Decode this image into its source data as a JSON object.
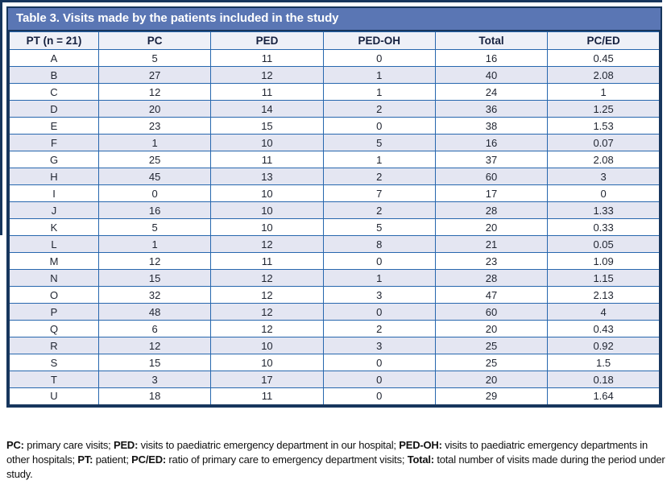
{
  "table": {
    "title": "Table 3. Visits made by the patients included in the study",
    "columns": [
      "PT (n = 21)",
      "PC",
      "PED",
      "PED-OH",
      "Total",
      "PC/ED"
    ],
    "rows": [
      [
        "A",
        "5",
        "11",
        "0",
        "16",
        "0.45"
      ],
      [
        "B",
        "27",
        "12",
        "1",
        "40",
        "2.08"
      ],
      [
        "C",
        "12",
        "11",
        "1",
        "24",
        "1"
      ],
      [
        "D",
        "20",
        "14",
        "2",
        "36",
        "1.25"
      ],
      [
        "E",
        "23",
        "15",
        "0",
        "38",
        "1.53"
      ],
      [
        "F",
        "1",
        "10",
        "5",
        "16",
        "0.07"
      ],
      [
        "G",
        "25",
        "11",
        "1",
        "37",
        "2.08"
      ],
      [
        "H",
        "45",
        "13",
        "2",
        "60",
        "3"
      ],
      [
        "I",
        "0",
        "10",
        "7",
        "17",
        "0"
      ],
      [
        "J",
        "16",
        "10",
        "2",
        "28",
        "1.33"
      ],
      [
        "K",
        "5",
        "10",
        "5",
        "20",
        "0.33"
      ],
      [
        "L",
        "1",
        "12",
        "8",
        "21",
        "0.05"
      ],
      [
        "M",
        "12",
        "11",
        "0",
        "23",
        "1.09"
      ],
      [
        "N",
        "15",
        "12",
        "1",
        "28",
        "1.15"
      ],
      [
        "O",
        "32",
        "12",
        "3",
        "47",
        "2.13"
      ],
      [
        "P",
        "48",
        "12",
        "0",
        "60",
        "4"
      ],
      [
        "Q",
        "6",
        "12",
        "2",
        "20",
        "0.43"
      ],
      [
        "R",
        "12",
        "10",
        "3",
        "25",
        "0.92"
      ],
      [
        "S",
        "15",
        "10",
        "0",
        "25",
        "1.5"
      ],
      [
        "T",
        "3",
        "17",
        "0",
        "20",
        "0.18"
      ],
      [
        "U",
        "18",
        "11",
        "0",
        "29",
        "1.64"
      ]
    ]
  },
  "footnote": {
    "segments": [
      {
        "term": "PC:",
        "text": " primary care visits; "
      },
      {
        "term": "PED:",
        "text": " visits to paediatric emergency department in our hospital; "
      },
      {
        "term": "PED-OH:",
        "text": " visits to paediatric emergency departments in other hospitals; "
      },
      {
        "term": "PT:",
        "text": " patient; "
      },
      {
        "term": "PC/ED:",
        "text": " ratio of primary care to emergency department visits; "
      },
      {
        "term": "Total:",
        "text": " total number of visits made during the period under study."
      }
    ]
  },
  "colors": {
    "banner_bg": "#5a76b4",
    "outer_border": "#17365d",
    "grid_border": "#2767ae",
    "row_alt_bg": "#e4e6f2",
    "header_row_bg": "#eef0f7",
    "title_color": "#ffffff"
  }
}
